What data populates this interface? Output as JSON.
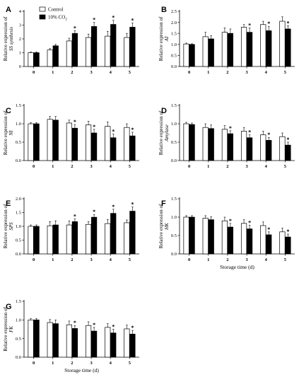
{
  "legend": {
    "control": "Control",
    "treatment_prefix": "10% CO",
    "treatment_sub": "2"
  },
  "chart_data": [
    {
      "id": "A",
      "letter": "A",
      "type": "bar",
      "ylabel_line1": "Relative expression of",
      "ylabel_line2": "SS synthesis",
      "ylim": [
        0,
        4
      ],
      "yticks": [
        "0",
        "1",
        "2",
        "3",
        "4"
      ],
      "ytick_values": [
        0,
        1,
        2,
        3,
        4
      ],
      "categories": [
        "0",
        "1",
        "2",
        "3",
        "4",
        "5"
      ],
      "xlabel": "",
      "show_legend": true,
      "series": [
        {
          "name": "Control",
          "values": [
            1.0,
            1.2,
            1.85,
            2.1,
            2.2,
            2.1
          ],
          "errors": [
            0.05,
            0.1,
            0.2,
            0.25,
            0.35,
            0.3
          ],
          "sig": [
            false,
            false,
            false,
            false,
            false,
            false
          ]
        },
        {
          "name": "10% CO2",
          "values": [
            1.0,
            1.5,
            2.4,
            2.9,
            3.05,
            2.85
          ],
          "errors": [
            0.05,
            0.1,
            0.2,
            0.3,
            0.3,
            0.3
          ],
          "sig": [
            false,
            false,
            true,
            true,
            true,
            true
          ]
        }
      ]
    },
    {
      "id": "B",
      "letter": "B",
      "type": "bar",
      "ylabel_line1": "Relative expression of",
      "ylabel_line2": "AI",
      "ylim": [
        0,
        2.5
      ],
      "yticks": [
        "0.0",
        "0.5",
        "1.0",
        "1.5",
        "2.0",
        "2.5"
      ],
      "ytick_values": [
        0,
        0.5,
        1.0,
        1.5,
        2.0,
        2.5
      ],
      "categories": [
        "0",
        "1",
        "2",
        "3",
        "4",
        "5"
      ],
      "xlabel": "",
      "show_legend": false,
      "series": [
        {
          "name": "Control",
          "values": [
            1.02,
            1.35,
            1.55,
            1.78,
            1.9,
            2.05
          ],
          "errors": [
            0.04,
            0.2,
            0.2,
            0.12,
            0.15,
            0.2
          ],
          "sig": [
            false,
            false,
            false,
            false,
            false,
            false
          ]
        },
        {
          "name": "10% CO2",
          "values": [
            1.0,
            1.25,
            1.5,
            1.55,
            1.62,
            1.7
          ],
          "errors": [
            0.03,
            0.15,
            0.2,
            0.2,
            0.2,
            0.15
          ],
          "sig": [
            false,
            false,
            false,
            true,
            true,
            true
          ]
        }
      ]
    },
    {
      "id": "C",
      "letter": "C",
      "type": "bar",
      "ylabel_line1": "Relative expression of",
      "ylabel_line2": "NI",
      "ylim": [
        0,
        1.5
      ],
      "yticks": [
        "0.0",
        "0.5",
        "1.0",
        "1.5"
      ],
      "ytick_values": [
        0,
        0.5,
        1.0,
        1.5
      ],
      "categories": [
        "0",
        "1",
        "2",
        "3",
        "4",
        "5"
      ],
      "xlabel": "",
      "show_legend": false,
      "series": [
        {
          "name": "Control",
          "values": [
            1.0,
            1.12,
            1.02,
            0.97,
            0.93,
            0.9
          ],
          "errors": [
            0.03,
            0.08,
            0.08,
            0.1,
            0.12,
            0.1
          ],
          "sig": [
            false,
            false,
            false,
            false,
            false,
            false
          ]
        },
        {
          "name": "10% CO2",
          "values": [
            1.0,
            1.1,
            0.88,
            0.75,
            0.62,
            0.67
          ],
          "errors": [
            0.03,
            0.1,
            0.1,
            0.1,
            0.1,
            0.1
          ],
          "sig": [
            false,
            false,
            true,
            true,
            true,
            true
          ]
        }
      ]
    },
    {
      "id": "D",
      "letter": "D",
      "type": "bar",
      "ylabel_line1": "Relative expression of",
      "ylabel_line2": "Amylase",
      "ylim": [
        0,
        1.5
      ],
      "yticks": [
        "0.0",
        "0.5",
        "1.0",
        "1.5"
      ],
      "ytick_values": [
        0,
        0.5,
        1.0,
        1.5
      ],
      "categories": [
        "0",
        "1",
        "2",
        "3",
        "4",
        "5"
      ],
      "xlabel": "",
      "show_legend": false,
      "series": [
        {
          "name": "Control",
          "values": [
            1.0,
            0.9,
            0.85,
            0.8,
            0.7,
            0.65
          ],
          "errors": [
            0.04,
            0.1,
            0.1,
            0.1,
            0.1,
            0.1
          ],
          "sig": [
            false,
            false,
            false,
            false,
            false,
            false
          ]
        },
        {
          "name": "10% CO2",
          "values": [
            0.98,
            0.87,
            0.73,
            0.62,
            0.55,
            0.42
          ],
          "errors": [
            0.04,
            0.1,
            0.08,
            0.08,
            0.08,
            0.08
          ],
          "sig": [
            false,
            false,
            true,
            true,
            true,
            true
          ]
        }
      ]
    },
    {
      "id": "E",
      "letter": "E",
      "type": "bar",
      "ylabel_line1": "Relative expression of",
      "ylabel_line2": "SPS",
      "ylim": [
        0,
        2.0
      ],
      "yticks": [
        "0.0",
        "0.5",
        "1.0",
        "1.5",
        "2.0"
      ],
      "ytick_values": [
        0,
        0.5,
        1.0,
        1.5,
        2.0
      ],
      "categories": [
        "0",
        "1",
        "2",
        "3",
        "4",
        "5"
      ],
      "xlabel": "",
      "show_legend": false,
      "series": [
        {
          "name": "Control",
          "values": [
            1.0,
            1.02,
            1.05,
            1.07,
            1.1,
            1.13
          ],
          "errors": [
            0.05,
            0.15,
            0.15,
            0.1,
            0.15,
            0.1
          ],
          "sig": [
            false,
            false,
            false,
            false,
            false,
            false
          ]
        },
        {
          "name": "10% CO2",
          "values": [
            1.0,
            1.05,
            1.17,
            1.33,
            1.47,
            1.55
          ],
          "errors": [
            0.05,
            0.15,
            0.1,
            0.1,
            0.15,
            0.15
          ],
          "sig": [
            false,
            false,
            true,
            true,
            true,
            true
          ]
        }
      ]
    },
    {
      "id": "F",
      "letter": "F",
      "type": "bar",
      "ylabel_line1": "Relative expression of",
      "ylabel_line2": "HK",
      "ylim": [
        0,
        1.5
      ],
      "yticks": [
        "0.0",
        "0.5",
        "1.0",
        "1.5"
      ],
      "ytick_values": [
        0,
        0.5,
        1.0,
        1.5
      ],
      "categories": [
        "0",
        "1",
        "2",
        "3",
        "4",
        "5"
      ],
      "xlabel": "Storage time (d)",
      "show_legend": false,
      "series": [
        {
          "name": "Control",
          "values": [
            1.0,
            0.97,
            0.9,
            0.83,
            0.77,
            0.6
          ],
          "errors": [
            0.04,
            0.07,
            0.1,
            0.1,
            0.1,
            0.1
          ],
          "sig": [
            false,
            false,
            false,
            false,
            false,
            false
          ]
        },
        {
          "name": "10% CO2",
          "values": [
            1.0,
            0.93,
            0.73,
            0.68,
            0.52,
            0.46
          ],
          "errors": [
            0.04,
            0.08,
            0.1,
            0.1,
            0.08,
            0.08
          ],
          "sig": [
            false,
            false,
            true,
            true,
            true,
            true
          ]
        }
      ]
    },
    {
      "id": "G",
      "letter": "G",
      "type": "bar",
      "ylabel_line1": "Relative expression of",
      "ylabel_line2": "FK",
      "ylim": [
        0,
        1.5
      ],
      "yticks": [
        "0.0",
        "0.5",
        "1.0",
        "1.5"
      ],
      "ytick_values": [
        0,
        0.5,
        1.0,
        1.5
      ],
      "categories": [
        "0",
        "1",
        "2",
        "3",
        "4",
        "5"
      ],
      "xlabel": "Storage time (d)",
      "show_legend": false,
      "series": [
        {
          "name": "Control",
          "values": [
            1.0,
            0.93,
            0.87,
            0.85,
            0.8,
            0.76
          ],
          "errors": [
            0.04,
            0.08,
            0.1,
            0.1,
            0.1,
            0.1
          ],
          "sig": [
            false,
            false,
            false,
            false,
            false,
            false
          ]
        },
        {
          "name": "10% CO2",
          "values": [
            1.0,
            0.9,
            0.77,
            0.7,
            0.65,
            0.62
          ],
          "errors": [
            0.04,
            0.1,
            0.08,
            0.1,
            0.1,
            0.1
          ],
          "sig": [
            false,
            false,
            true,
            true,
            true,
            true
          ]
        }
      ]
    }
  ]
}
